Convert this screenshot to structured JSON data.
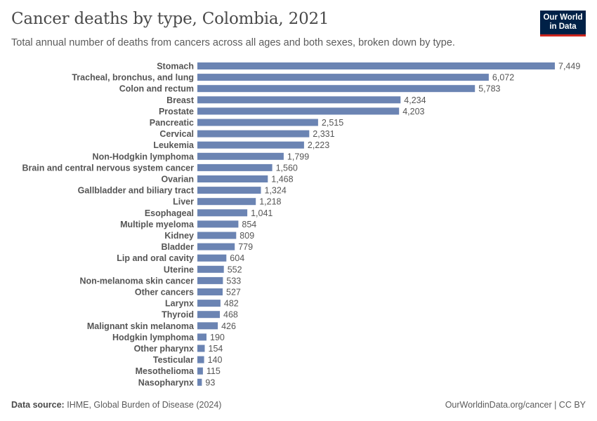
{
  "header": {
    "title": "Cancer deaths by type, Colombia, 2021",
    "subtitle": "Total annual number of deaths from cancers across all ages and both sexes, broken down by type."
  },
  "logo": {
    "line1": "Our World",
    "line2": "in Data"
  },
  "footer": {
    "source_label": "Data source:",
    "source_text": "IHME, Global Burden of Disease (2024)",
    "right_text": "OurWorldinData.org/cancer | CC BY"
  },
  "colors": {
    "bar": "#6b84b3",
    "logo_bg": "#002147",
    "logo_accent": "#ce261e"
  },
  "chart_data": {
    "type": "bar",
    "orientation": "horizontal",
    "title": "Cancer deaths by type, Colombia, 2021",
    "categories": [
      "Stomach",
      "Tracheal, bronchus, and lung",
      "Colon and rectum",
      "Breast",
      "Prostate",
      "Pancreatic",
      "Cervical",
      "Leukemia",
      "Non-Hodgkin lymphoma",
      "Brain and central nervous system cancer",
      "Ovarian",
      "Gallbladder and biliary tract",
      "Liver",
      "Esophageal",
      "Multiple myeloma",
      "Kidney",
      "Bladder",
      "Lip and oral cavity",
      "Uterine",
      "Non-melanoma skin cancer",
      "Other cancers",
      "Larynx",
      "Thyroid",
      "Malignant skin melanoma",
      "Hodgkin lymphoma",
      "Other pharynx",
      "Testicular",
      "Mesothelioma",
      "Nasopharynx"
    ],
    "values": [
      7449,
      6072,
      5783,
      4234,
      4203,
      2515,
      2331,
      2223,
      1799,
      1560,
      1468,
      1324,
      1218,
      1041,
      854,
      809,
      779,
      604,
      552,
      533,
      527,
      482,
      468,
      426,
      190,
      154,
      140,
      115,
      93
    ],
    "value_labels": [
      "7,449",
      "6,072",
      "5,783",
      "4,234",
      "4,203",
      "2,515",
      "2,331",
      "2,223",
      "1,799",
      "1,560",
      "1,468",
      "1,324",
      "1,218",
      "1,041",
      "854",
      "809",
      "779",
      "604",
      "552",
      "533",
      "527",
      "482",
      "468",
      "426",
      "190",
      "154",
      "140",
      "115",
      "93"
    ],
    "xlim": [
      0,
      7449
    ],
    "xlabel": "",
    "ylabel": "",
    "grid": false,
    "legend": "none"
  }
}
